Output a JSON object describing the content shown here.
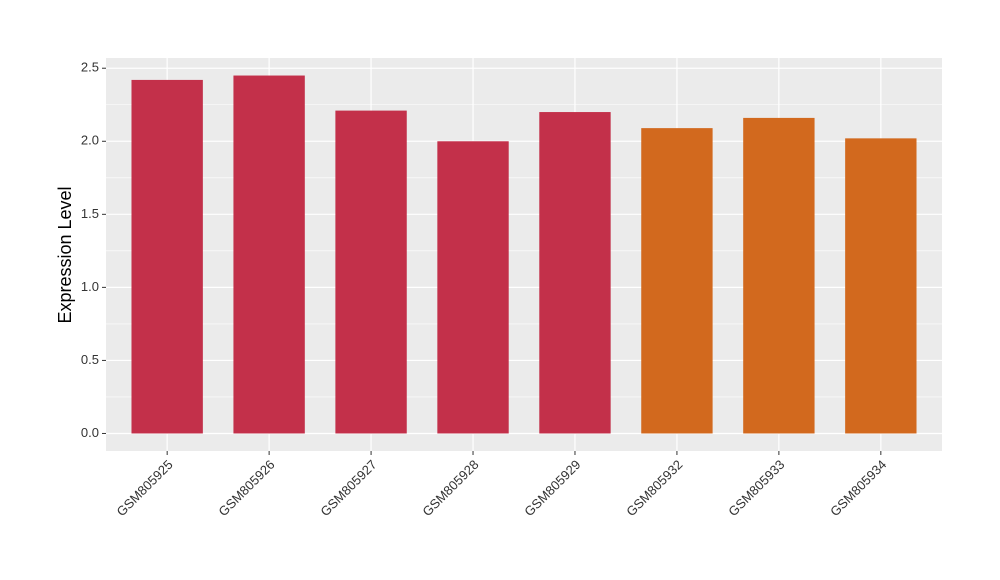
{
  "chart_data": {
    "type": "bar",
    "y_label": "Expression Level",
    "categories": [
      "GSM805925",
      "GSM805926",
      "GSM805927",
      "GSM805928",
      "GSM805929",
      "GSM805932",
      "GSM805933",
      "GSM805934"
    ],
    "values": [
      2.42,
      2.45,
      2.21,
      2.0,
      2.2,
      2.09,
      2.16,
      2.02
    ],
    "colors": [
      "#c3304a",
      "#c3304a",
      "#c3304a",
      "#c3304a",
      "#c3304a",
      "#d2691e",
      "#d2691e",
      "#d2691e"
    ],
    "ylim": [
      -0.12,
      2.57
    ],
    "yticks": [
      {
        "value": 0,
        "label": "0.0"
      },
      0.5,
      {
        "value": 1,
        "label": "1.0"
      },
      1.5,
      {
        "value": 2,
        "label": "2.0"
      },
      2.5
    ],
    "minor_yticks": [
      0.25,
      0.75,
      1.25,
      1.75,
      2.25
    ],
    "grid": true
  }
}
